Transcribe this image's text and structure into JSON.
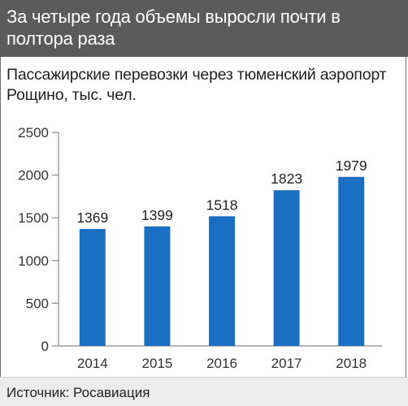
{
  "header": {
    "title": "За четыре года объемы выросли почти в полтора раза"
  },
  "chart_data": {
    "type": "bar",
    "title": "Пассажирские перевозки через тюменский аэропорт Рощино, тыс. чел.",
    "categories": [
      "2014",
      "2015",
      "2016",
      "2017",
      "2018"
    ],
    "values": [
      1369,
      1399,
      1518,
      1823,
      1979
    ],
    "data_labels": [
      "1369",
      "1399",
      "1518",
      "1823",
      "1979"
    ],
    "y_ticks": [
      "0",
      "500",
      "1000",
      "1500",
      "2000",
      "2500"
    ],
    "ylim": [
      0,
      2500
    ],
    "grid": false,
    "bar_color": "#1a6fc4",
    "axis_color": "#8a8a8a"
  },
  "footer": {
    "source": "Источник: Росавиация"
  }
}
